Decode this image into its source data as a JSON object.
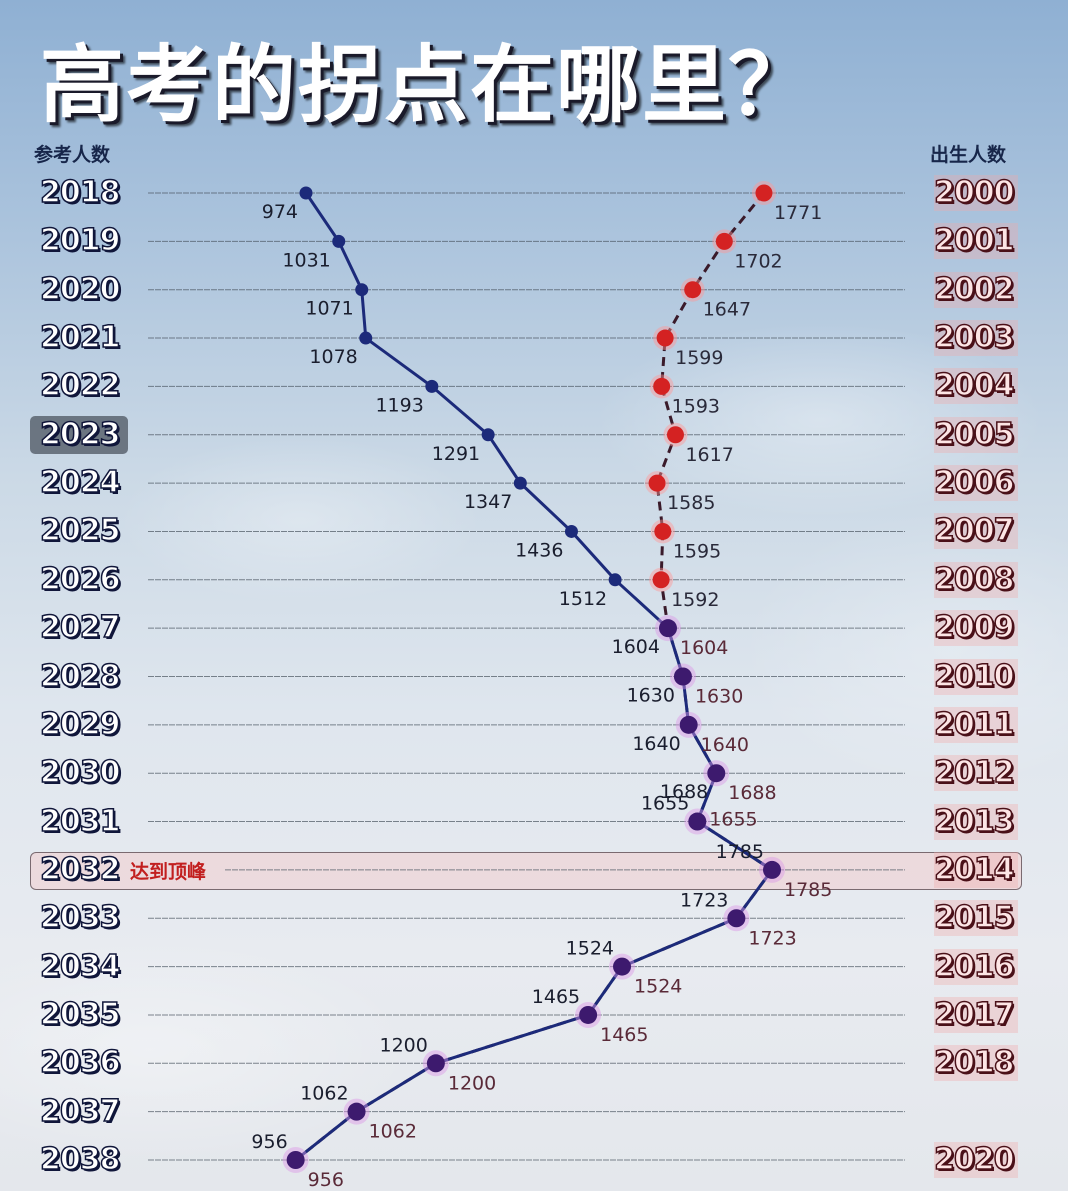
{
  "title": "高考的拐点在哪里？",
  "left_header": "参考人数",
  "right_header": "出生人数",
  "peak_label": "达到顶峰",
  "peak_exam_year": "2032",
  "highlighted_exam_year": "2023",
  "colors": {
    "exam_line": "#1c2a7a",
    "birth_line": "#d42222",
    "overlap": "#3d1a6e",
    "peak_text": "#c21f1f"
  },
  "chart_data": {
    "type": "line",
    "title": "高考的拐点在哪里？",
    "xlabel": "",
    "ylabel": "",
    "left_axis_label": "参考人数",
    "right_axis_label": "出生人数",
    "exam_years": [
      "2018",
      "2019",
      "2020",
      "2021",
      "2022",
      "2023",
      "2024",
      "2025",
      "2026",
      "2027",
      "2028",
      "2029",
      "2030",
      "2031",
      "2032",
      "2033",
      "2034",
      "2035",
      "2036",
      "2037",
      "2038"
    ],
    "birth_years": [
      "2000",
      "2001",
      "2002",
      "2003",
      "2004",
      "2005",
      "2006",
      "2007",
      "2008",
      "2009",
      "2010",
      "2011",
      "2012",
      "2013",
      "2014",
      "2015",
      "2016",
      "2017",
      "2018",
      "",
      "2020"
    ],
    "series": [
      {
        "name": "参考人数",
        "style": "solid",
        "color": "#1c2a7a",
        "values": [
          974,
          1031,
          1071,
          1078,
          1193,
          1291,
          1347,
          1436,
          1512,
          1604,
          1630,
          1640,
          1688,
          1655,
          1785,
          1723,
          1524,
          1465,
          1200,
          1062,
          956
        ]
      },
      {
        "name": "出生人数",
        "style": "dashed",
        "color": "#d42222",
        "values": [
          1771,
          1702,
          1647,
          1599,
          1593,
          1617,
          1585,
          1595,
          1592,
          1604,
          1630,
          1640,
          1688,
          1655,
          1785,
          1723,
          1524,
          1465,
          1200,
          1062,
          956
        ]
      }
    ],
    "annotations": [
      {
        "row": "2032",
        "text": "达到顶峰"
      }
    ],
    "grid": true
  }
}
